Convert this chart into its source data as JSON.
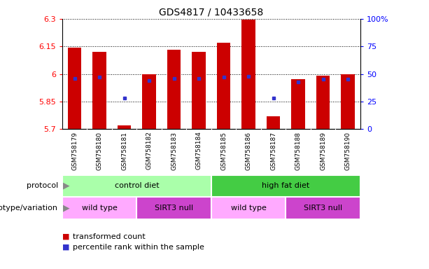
{
  "title": "GDS4817 / 10433658",
  "samples": [
    "GSM758179",
    "GSM758180",
    "GSM758181",
    "GSM758182",
    "GSM758183",
    "GSM758184",
    "GSM758185",
    "GSM758186",
    "GSM758187",
    "GSM758188",
    "GSM758189",
    "GSM758190"
  ],
  "bar_values": [
    6.145,
    6.12,
    5.72,
    6.0,
    6.13,
    6.12,
    6.17,
    6.295,
    5.77,
    5.97,
    5.99,
    6.0
  ],
  "percentile_values": [
    46,
    47,
    28,
    44,
    46,
    46,
    47,
    48,
    28,
    43,
    45,
    45
  ],
  "ymin": 5.7,
  "ymax": 6.3,
  "yticks": [
    5.7,
    5.85,
    6.0,
    6.15,
    6.3
  ],
  "ytick_labels": [
    "5.7",
    "5.85",
    "6",
    "6.15",
    "6.3"
  ],
  "right_yticks": [
    0,
    25,
    50,
    75,
    100
  ],
  "right_ytick_labels": [
    "0",
    "25",
    "50",
    "75",
    "100%"
  ],
  "bar_color": "#cc0000",
  "percentile_color": "#3333cc",
  "protocol_labels": [
    "control diet",
    "high fat diet"
  ],
  "protocol_colors": [
    "#aaffaa",
    "#44cc44"
  ],
  "genotype_labels": [
    "wild type",
    "SIRT3 null",
    "wild type",
    "SIRT3 null"
  ],
  "genotype_ranges": [
    0,
    3,
    6,
    9,
    12
  ],
  "genotype_colors": [
    "#ffaaff",
    "#cc44cc",
    "#ffaaff",
    "#cc44cc"
  ],
  "legend_items": [
    "transformed count",
    "percentile rank within the sample"
  ],
  "legend_colors": [
    "#cc0000",
    "#3333cc"
  ],
  "xlabel_protocol": "protocol",
  "xlabel_genotype": "genotype/variation",
  "title_fontsize": 10,
  "tick_fontsize": 8,
  "label_fontsize": 8,
  "xtick_fontsize": 6.5
}
